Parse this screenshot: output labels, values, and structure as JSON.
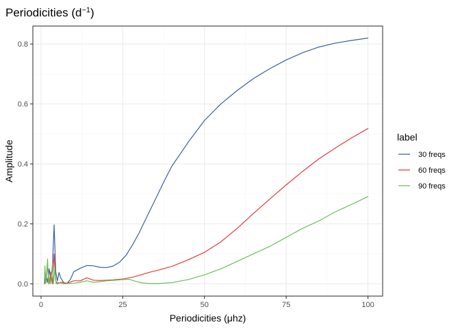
{
  "chart_data": {
    "type": "line",
    "title": "Periodicities (d",
    "title_sup": "−1",
    "title_close": ")",
    "xlabel": "Periodicities (μhz)",
    "ylabel": "Amplitude",
    "xlim": [
      -2.5,
      104.5
    ],
    "ylim": [
      -0.041,
      0.86
    ],
    "x_ticks": [
      0,
      25,
      50,
      75,
      100
    ],
    "x_tick_labels": [
      "0",
      "25",
      "50",
      "75",
      "100"
    ],
    "y_ticks": [
      0.0,
      0.2,
      0.4,
      0.6,
      0.8
    ],
    "y_tick_labels": [
      "0.0",
      "0.2",
      "0.4",
      "0.6",
      "0.8"
    ],
    "grid": true,
    "legend": {
      "title": "label",
      "position": "right"
    },
    "series": [
      {
        "name": "30  freqs",
        "color": "#3a5f9a",
        "points": [
          [
            1,
            0.0
          ],
          [
            1.5,
            0.03
          ],
          [
            2,
            0.005
          ],
          [
            2.5,
            0.05
          ],
          [
            3,
            0.01
          ],
          [
            3.5,
            0.06
          ],
          [
            4,
            0.197
          ],
          [
            4.5,
            0.04
          ],
          [
            5,
            0.01
          ],
          [
            5.5,
            0.038
          ],
          [
            6,
            0.02
          ],
          [
            7,
            0.003
          ],
          [
            8,
            0.002
          ],
          [
            9,
            0.015
          ],
          [
            10,
            0.04
          ],
          [
            12,
            0.052
          ],
          [
            14,
            0.061
          ],
          [
            16,
            0.06
          ],
          [
            18,
            0.055
          ],
          [
            20,
            0.054
          ],
          [
            22,
            0.059
          ],
          [
            24,
            0.072
          ],
          [
            26,
            0.095
          ],
          [
            28,
            0.13
          ],
          [
            30,
            0.17
          ],
          [
            32,
            0.215
          ],
          [
            34,
            0.26
          ],
          [
            36,
            0.305
          ],
          [
            38,
            0.35
          ],
          [
            40,
            0.392
          ],
          [
            45,
            0.472
          ],
          [
            50,
            0.545
          ],
          [
            55,
            0.6
          ],
          [
            60,
            0.645
          ],
          [
            65,
            0.685
          ],
          [
            70,
            0.718
          ],
          [
            75,
            0.747
          ],
          [
            80,
            0.771
          ],
          [
            85,
            0.79
          ],
          [
            90,
            0.803
          ],
          [
            95,
            0.812
          ],
          [
            100,
            0.82
          ]
        ]
      },
      {
        "name": "60  freqs",
        "color": "#e8383d",
        "points": [
          [
            1,
            0.0
          ],
          [
            1.5,
            0.01
          ],
          [
            2,
            0.06
          ],
          [
            2.5,
            0.0
          ],
          [
            3,
            0.04
          ],
          [
            3.5,
            0.0
          ],
          [
            4,
            0.1
          ],
          [
            4.5,
            0.01
          ],
          [
            5,
            0.0
          ],
          [
            6,
            0.005
          ],
          [
            8,
            0.002
          ],
          [
            10,
            0.01
          ],
          [
            12,
            0.01
          ],
          [
            14,
            0.02
          ],
          [
            16,
            0.012
          ],
          [
            18,
            0.011
          ],
          [
            20,
            0.012
          ],
          [
            22,
            0.013
          ],
          [
            25,
            0.016
          ],
          [
            28,
            0.022
          ],
          [
            30,
            0.028
          ],
          [
            33,
            0.038
          ],
          [
            36,
            0.046
          ],
          [
            40,
            0.058
          ],
          [
            45,
            0.08
          ],
          [
            50,
            0.105
          ],
          [
            55,
            0.14
          ],
          [
            60,
            0.185
          ],
          [
            65,
            0.235
          ],
          [
            70,
            0.283
          ],
          [
            75,
            0.33
          ],
          [
            80,
            0.375
          ],
          [
            85,
            0.417
          ],
          [
            90,
            0.453
          ],
          [
            95,
            0.487
          ],
          [
            100,
            0.518
          ]
        ]
      },
      {
        "name": "90  freqs",
        "color": "#6bbf59",
        "points": [
          [
            1,
            0.0
          ],
          [
            1.2,
            0.06
          ],
          [
            1.5,
            0.0
          ],
          [
            2,
            0.083
          ],
          [
            2.3,
            0.0
          ],
          [
            2.7,
            0.02
          ],
          [
            3,
            0.0
          ],
          [
            3.5,
            0.07
          ],
          [
            3.8,
            0.0
          ],
          [
            4.2,
            0.05
          ],
          [
            4.6,
            0.0
          ],
          [
            5,
            0.005
          ],
          [
            7,
            0.0
          ],
          [
            10,
            0.002
          ],
          [
            12,
            0.005
          ],
          [
            14,
            0.01
          ],
          [
            16,
            0.005
          ],
          [
            18,
            0.007
          ],
          [
            20,
            0.01
          ],
          [
            23,
            0.012
          ],
          [
            25,
            0.014
          ],
          [
            27,
            0.015
          ],
          [
            29,
            0.008
          ],
          [
            31,
            0.003
          ],
          [
            33,
            0.001
          ],
          [
            36,
            0.001
          ],
          [
            40,
            0.004
          ],
          [
            45,
            0.014
          ],
          [
            50,
            0.03
          ],
          [
            55,
            0.05
          ],
          [
            60,
            0.075
          ],
          [
            65,
            0.1
          ],
          [
            70,
            0.125
          ],
          [
            75,
            0.155
          ],
          [
            80,
            0.185
          ],
          [
            85,
            0.21
          ],
          [
            90,
            0.24
          ],
          [
            95,
            0.265
          ],
          [
            100,
            0.291
          ]
        ]
      }
    ]
  }
}
